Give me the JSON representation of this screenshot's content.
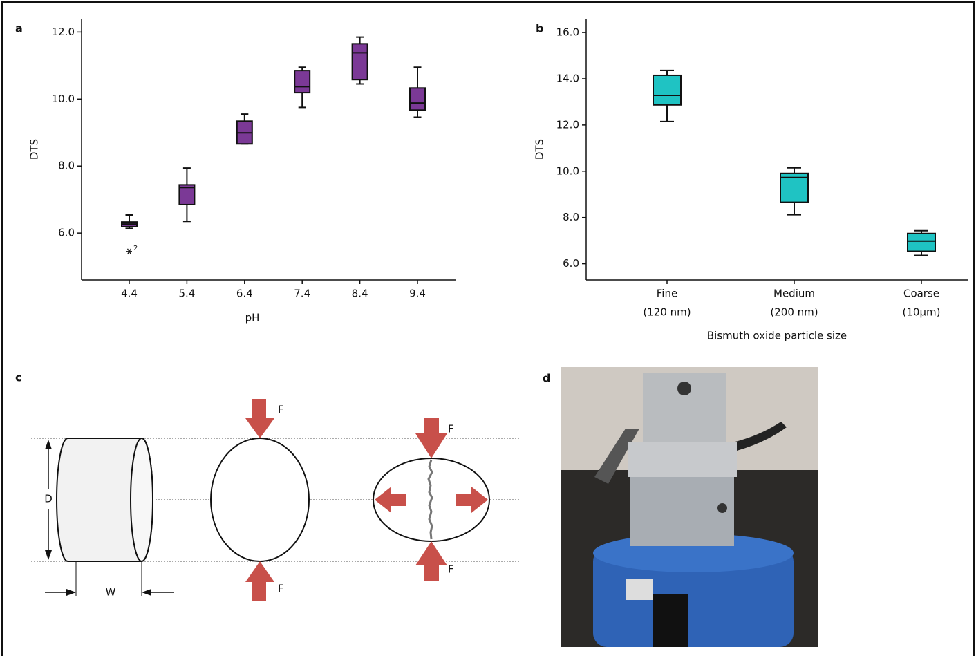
{
  "chart_data": [
    {
      "type": "box",
      "ylabel": "DTS",
      "xlabel": "pH",
      "categories": [
        "4.4",
        "5.4",
        "6.4",
        "7.4",
        "8.4",
        "9.4"
      ],
      "min": [
        6.14,
        6.35,
        8.66,
        9.75,
        10.45,
        9.46
      ],
      "q1": [
        6.19,
        6.85,
        8.66,
        10.19,
        10.58,
        9.67
      ],
      "median": [
        6.27,
        7.36,
        8.99,
        10.37,
        11.38,
        9.88
      ],
      "q3": [
        6.33,
        7.44,
        9.34,
        10.85,
        11.65,
        10.33
      ],
      "max": [
        6.54,
        7.94,
        9.55,
        10.95,
        11.85,
        10.95
      ],
      "outliers": [
        {
          "category": "4.4",
          "value": 5.45,
          "label": "2"
        }
      ],
      "color": "#7b3996",
      "ylim": [
        4.6,
        12.4
      ],
      "yticks": [
        {
          "value": 6,
          "label": "6.0"
        },
        {
          "value": 8,
          "label": "8.0"
        },
        {
          "value": 10,
          "label": "10.0"
        },
        {
          "value": 12,
          "label": "12.0"
        }
      ]
    },
    {
      "type": "box",
      "ylabel": "DTS",
      "xlabel": "Bismuth oxide particle size",
      "categories": [
        [
          "Fine",
          "(120 nm)"
        ],
        [
          "Medium",
          "(200 nm)"
        ],
        [
          "Coarse",
          "(10µm)"
        ]
      ],
      "min": [
        12.15,
        8.12,
        6.36
      ],
      "q1": [
        12.87,
        8.66,
        6.54
      ],
      "median": [
        13.28,
        9.73,
        6.98
      ],
      "q3": [
        14.15,
        9.91,
        7.31
      ],
      "max": [
        14.36,
        10.15,
        7.43
      ],
      "color": "#1fc3c3",
      "ylim": [
        5.3,
        16.6
      ],
      "yticks": [
        {
          "value": 6,
          "label": "6.0"
        },
        {
          "value": 8,
          "label": "8.0"
        },
        {
          "value": 10,
          "label": "10.0"
        },
        {
          "value": 12,
          "label": "12.0"
        },
        {
          "value": 14,
          "label": "14.0"
        },
        {
          "value": 16,
          "label": "16.0"
        }
      ]
    }
  ],
  "panel_labels": [
    "a",
    "b",
    "c",
    "d"
  ],
  "diagram": {
    "diameter_label": "D",
    "width_label": "W",
    "force_label": "F"
  }
}
